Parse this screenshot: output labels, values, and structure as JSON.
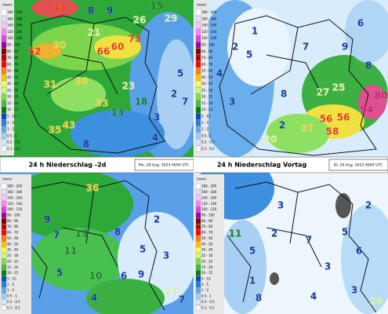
{
  "header": {
    "left_title": "24 h Niederschlag -2d",
    "left_date": "Mo, 28.Aug. 2023 0600 UTC",
    "right_title": "24 h Niederschlag Vortag",
    "right_date": "Di, 29.Aug. 2023 0600 UTC"
  },
  "legend": {
    "unit": "(mm)",
    "labels": [
      "180 - 200",
      "160 - 180",
      "140 - 160",
      "120 - 140",
      "100 - 120",
      "90 - 100",
      "80 - 90",
      "70 - 80",
      "60 - 70",
      "50 - 60",
      "40 - 50",
      "30 - 40",
      "25 - 30",
      "20 - 25",
      "15 - 20",
      "10 - 15",
      "5 - 10",
      "2 - 5",
      "1 - 2",
      "0.5 - 1",
      "0.2 - 0.5",
      "0.1 - 0.2"
    ]
  },
  "maps": [
    {
      "labels": [
        "60",
        "52",
        "30",
        "66",
        "73",
        "60",
        "31",
        "36",
        "23",
        "35",
        "33",
        "43",
        "9",
        "8",
        "26",
        "29",
        "15",
        "21",
        "13",
        "3",
        "2",
        "5",
        "18",
        "8",
        "7",
        "4"
      ]
    },
    {
      "labels": [
        "27",
        "25",
        "56",
        "56",
        "58",
        "94",
        "80",
        "20",
        "37",
        "2",
        "4",
        "3",
        "5",
        "7",
        "6",
        "8",
        "9",
        "8",
        "2",
        "1"
      ]
    },
    {
      "labels": [
        "36",
        "13",
        "23",
        "9",
        "7",
        "5",
        "8",
        "5",
        "3",
        "9",
        "4",
        "7",
        "10",
        "6",
        "2",
        "11"
      ]
    },
    {
      "labels": [
        "24",
        "11",
        "2",
        "5",
        "7",
        "3",
        "1",
        "4",
        "6",
        "3",
        "2",
        "5",
        "8",
        "3"
      ]
    }
  ]
}
